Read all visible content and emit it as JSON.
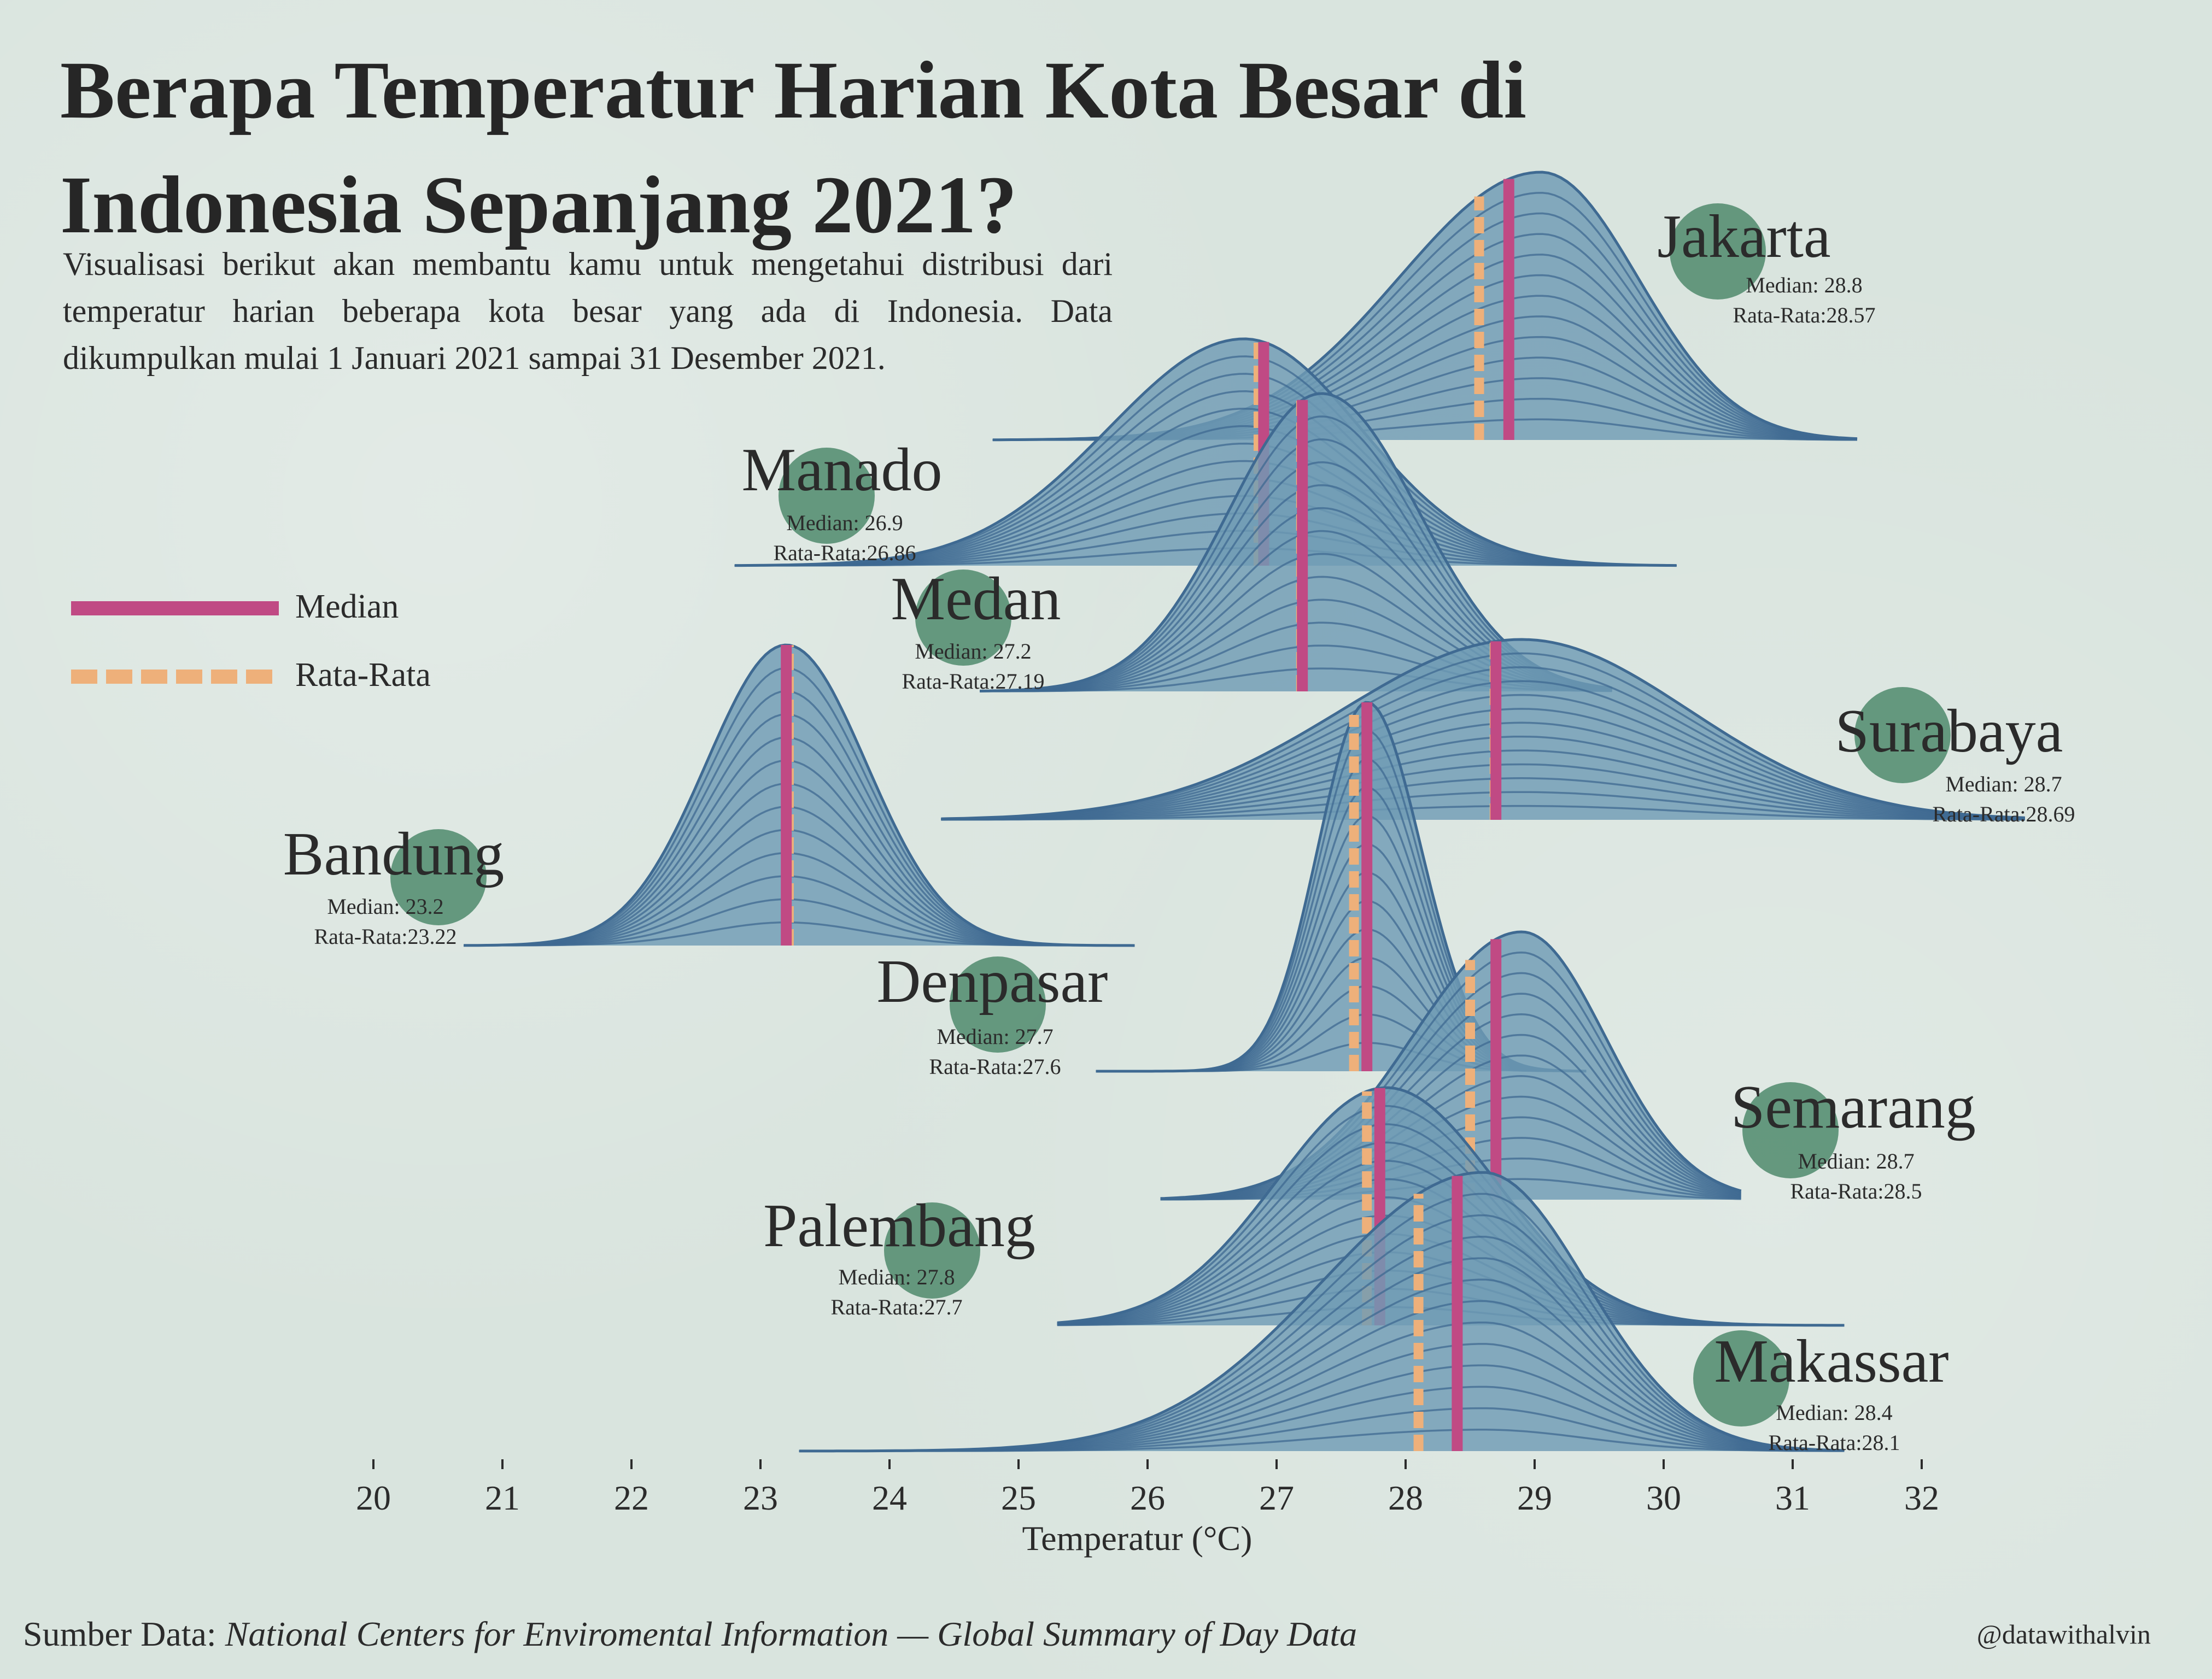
{
  "title": "Berapa Temperatur Harian Kota Besar di Indonesia Sepanjang 2021?",
  "subtitle": "Visualisasi berikut akan membantu kamu untuk mengetahui distribusi dari temperatur harian beberapa kota besar yang ada di Indonesia. Data dikumpulkan mulai 1 Januari 2021 sampai 31 Desember 2021.",
  "legend": {
    "median_label": "Median",
    "mean_label": "Rata-Rata"
  },
  "source": {
    "prefix": "Sumber Data:",
    "text": "National Centers for Enviromental Information — Global Summary of Day Data"
  },
  "credit": "@datawithalvin",
  "colors": {
    "ridge_fill": "#6f9bb4",
    "ridge_line": "#3f6a92",
    "median": "#c04a84",
    "mean": "#eeb07a",
    "circle": "#4f8a6c",
    "background": "#d9e4de"
  },
  "chart_data": {
    "type": "ridgeline",
    "xlabel": "Temperatur (°C)",
    "xlim": [
      20,
      32
    ],
    "ticks": [
      20,
      21,
      22,
      23,
      24,
      25,
      26,
      27,
      28,
      29,
      30,
      31,
      32
    ],
    "median_prefix": "Median: ",
    "mean_prefix": "Rata-Rata:",
    "cities": [
      {
        "name": "Jakarta",
        "median": "28.8",
        "mean": "28.57",
        "peak": 29.05,
        "sd_left": 1.1,
        "sd_right": 0.75,
        "xmin": 24.8,
        "xmax": 31.5
      },
      {
        "name": "Manado",
        "median": "26.9",
        "mean": "26.86",
        "peak": 26.75,
        "sd_left": 1.05,
        "sd_right": 0.9,
        "xmin": 22.8,
        "xmax": 30.1
      },
      {
        "name": "Medan",
        "median": "27.2",
        "mean": "27.19",
        "peak": 27.35,
        "sd_left": 0.72,
        "sd_right": 0.75,
        "xmin": 24.7,
        "xmax": 29.6
      },
      {
        "name": "Surabaya",
        "median": "28.7",
        "mean": "28.69",
        "peak": 28.9,
        "sd_left": 1.4,
        "sd_right": 1.3,
        "xmin": 24.4,
        "xmax": 32.8
      },
      {
        "name": "Bandung",
        "median": "23.2",
        "mean": "23.22",
        "peak": 23.2,
        "sd_left": 0.62,
        "sd_right": 0.62,
        "xmin": 20.7,
        "xmax": 25.9
      },
      {
        "name": "Denpasar",
        "median": "27.7",
        "mean": "27.6",
        "peak": 27.7,
        "sd_left": 0.38,
        "sd_right": 0.42,
        "xmin": 25.6,
        "xmax": 29.4
      },
      {
        "name": "Semarang",
        "median": "28.7",
        "mean": "28.5",
        "peak": 28.9,
        "sd_left": 0.85,
        "sd_right": 0.65,
        "xmin": 26.1,
        "xmax": 30.6
      },
      {
        "name": "Palembang",
        "median": "27.8",
        "mean": "27.7",
        "peak": 27.85,
        "sd_left": 0.85,
        "sd_right": 0.85,
        "xmin": 25.3,
        "xmax": 31.4
      },
      {
        "name": "Makassar",
        "median": "28.4",
        "mean": "28.1",
        "peak": 28.6,
        "sd_left": 1.25,
        "sd_right": 0.8,
        "xmin": 23.3,
        "xmax": 31.4
      }
    ]
  }
}
